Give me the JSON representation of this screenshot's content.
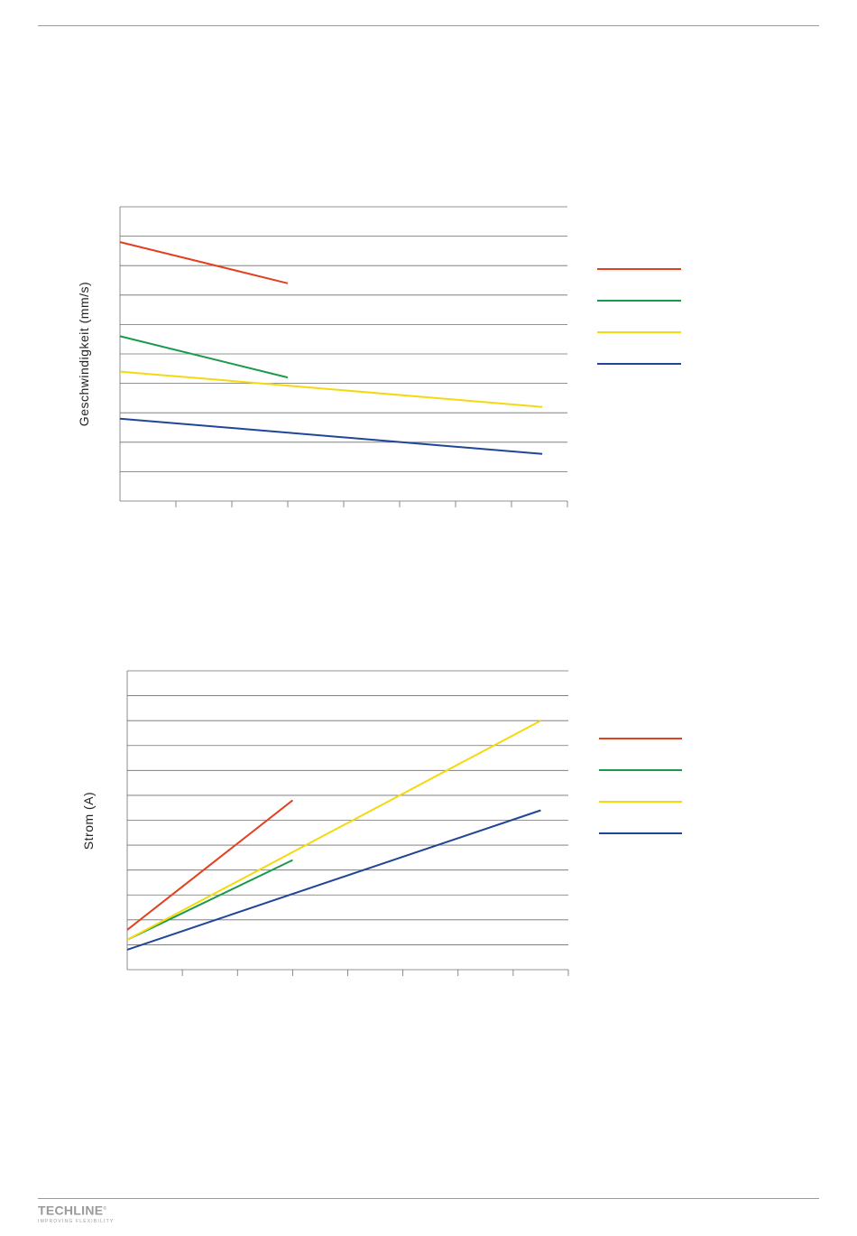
{
  "chart_data": [
    {
      "type": "line",
      "title": "",
      "xlabel": "",
      "ylabel": "Geschwindigkeit (mm/s)",
      "xlim": [
        0,
        8
      ],
      "ylim": [
        0,
        10
      ],
      "x_ticks": 8,
      "y_gridlines": 10,
      "grid": true,
      "legend_position": "right",
      "series": [
        {
          "color": "#e2401f",
          "x": [
            0,
            3
          ],
          "y": [
            8.8,
            7.4
          ]
        },
        {
          "color": "#1a9a4a",
          "x": [
            0,
            3
          ],
          "y": [
            5.6,
            4.2
          ]
        },
        {
          "color": "#f5d90f",
          "x": [
            0,
            7.55
          ],
          "y": [
            4.4,
            3.2
          ]
        },
        {
          "color": "#1f4697",
          "x": [
            0,
            7.55
          ],
          "y": [
            2.8,
            1.6
          ]
        }
      ]
    },
    {
      "type": "line",
      "title": "",
      "xlabel": "",
      "ylabel": "Strom (A)",
      "xlim": [
        0,
        8
      ],
      "ylim": [
        0,
        12
      ],
      "x_ticks": 8,
      "y_gridlines": 12,
      "grid": true,
      "legend_position": "right",
      "series": [
        {
          "color": "#e2401f",
          "x": [
            0,
            3
          ],
          "y": [
            1.6,
            6.8
          ]
        },
        {
          "color": "#1a9a4a",
          "x": [
            0,
            3
          ],
          "y": [
            1.2,
            4.4
          ]
        },
        {
          "color": "#f5d90f",
          "x": [
            0,
            7.5
          ],
          "y": [
            1.2,
            10.0
          ]
        },
        {
          "color": "#1f4697",
          "x": [
            0,
            7.5
          ],
          "y": [
            0.8,
            6.4
          ]
        }
      ]
    }
  ],
  "footer": {
    "logo_text": "TECHLINE",
    "logo_mark": "®",
    "tagline": "IMPROVING FLEXIBILITY"
  }
}
